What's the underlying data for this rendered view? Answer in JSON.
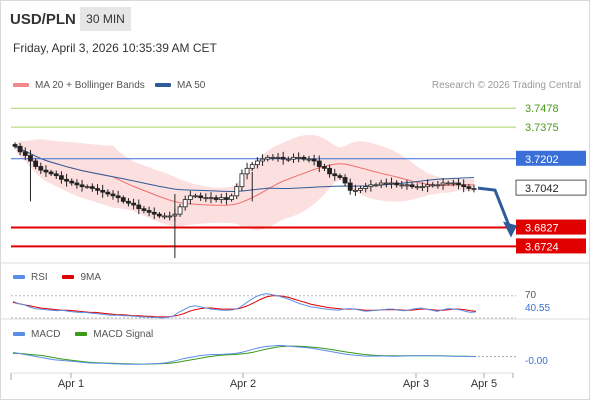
{
  "header": {
    "symbol": "USD/PLN",
    "timeframe": "30 MIN",
    "datetime": "Friday, April 3, 2026 10:35:39 AM CET"
  },
  "legend": {
    "bollinger_label": "MA 20 + Bollinger Bands",
    "ma50_label": "MA 50",
    "credit": "Research © 2026 Trading Central"
  },
  "colors": {
    "bollinger": "#f5a3a3",
    "ma50": "#2e5b9a",
    "resistance": "#a8d36a",
    "support": "#e00000",
    "pivot": "#3a6fd8",
    "arrow": "#2e5b9a",
    "rsi": "#5b8ee6",
    "rsi_ma": "#e00000",
    "macd": "#5b8ee6",
    "macd_signal": "#3a9a1a",
    "bull": "#ffffff",
    "bear": "#222222"
  },
  "chart_data": [
    {
      "type": "candlestick",
      "title": "USD/PLN",
      "timeframe": "30 MIN",
      "ylim": [
        3.665,
        3.755
      ],
      "x_ticks": [
        "Apr 1",
        "Apr 2",
        "Apr 3",
        "Apr 5"
      ],
      "series": [
        {
          "name": "MA 20 + Bollinger Bands"
        },
        {
          "name": "MA 50"
        }
      ],
      "levels": [
        {
          "label": "3.7478",
          "value": 3.7478,
          "kind": "resistance"
        },
        {
          "label": "3.7375",
          "value": 3.7375,
          "kind": "resistance"
        },
        {
          "label": "3.7202",
          "value": 3.7202,
          "kind": "pivot"
        },
        {
          "label": "3.7042",
          "value": 3.7042,
          "kind": "last"
        },
        {
          "label": "3.6827",
          "value": 3.6827,
          "kind": "support"
        },
        {
          "label": "3.6724",
          "value": 3.6724,
          "kind": "support"
        }
      ],
      "approx_close": [
        3.727,
        3.724,
        3.722,
        3.719,
        3.716,
        3.714,
        3.713,
        3.712,
        3.711,
        3.709,
        3.708,
        3.707,
        3.706,
        3.705,
        3.705,
        3.704,
        3.703,
        3.702,
        3.701,
        3.7,
        3.699,
        3.697,
        3.696,
        3.695,
        3.693,
        3.692,
        3.691,
        3.69,
        3.689,
        3.689,
        3.689,
        3.69,
        3.694,
        3.698,
        3.7,
        3.7,
        3.699,
        3.699,
        3.699,
        3.698,
        3.699,
        3.698,
        3.7,
        3.705,
        3.712,
        3.715,
        3.717,
        3.719,
        3.72,
        3.721,
        3.721,
        3.721,
        3.72,
        3.72,
        3.721,
        3.721,
        3.72,
        3.72,
        3.719,
        3.716,
        3.715,
        3.712,
        3.711,
        3.71,
        3.707,
        3.703,
        3.703,
        3.704,
        3.705,
        3.706,
        3.706,
        3.707,
        3.707,
        3.707,
        3.706,
        3.706,
        3.706,
        3.705,
        3.705,
        3.705,
        3.706,
        3.706,
        3.706,
        3.707,
        3.707,
        3.707,
        3.706,
        3.705,
        3.704,
        3.704
      ],
      "projection": {
        "from": 3.7042,
        "to": 3.6827
      }
    },
    {
      "type": "line",
      "title": "RSI",
      "series": [
        {
          "name": "RSI"
        },
        {
          "name": "9MA"
        }
      ],
      "levels": [
        {
          "label": "70",
          "value": 70
        },
        {
          "label": "40.55",
          "value": 40.55,
          "kind": "current"
        }
      ],
      "approx_rsi": [
        60,
        56,
        54,
        50,
        47,
        46,
        45,
        44,
        43,
        44,
        42,
        41,
        40,
        40,
        39,
        38,
        37,
        36,
        35,
        35,
        34,
        34,
        33,
        32,
        32,
        31,
        31,
        30,
        31,
        33,
        40,
        45,
        50,
        52,
        50,
        48,
        46,
        45,
        44,
        44,
        45,
        48,
        55,
        62,
        68,
        72,
        74,
        72,
        70,
        67,
        64,
        60,
        56,
        53,
        50,
        49,
        47,
        46,
        45,
        44,
        46,
        47,
        46,
        44,
        42,
        43,
        44,
        45,
        46,
        46,
        44,
        43,
        45,
        47,
        48,
        46,
        44,
        42,
        45,
        47,
        46,
        45,
        42,
        40,
        41
      ],
      "approx_rsi_ma": [
        58,
        56,
        54,
        52,
        50,
        48,
        47,
        46,
        45,
        44,
        44,
        43,
        42,
        41,
        40,
        40,
        39,
        38,
        37,
        36,
        36,
        35,
        34,
        34,
        33,
        33,
        32,
        32,
        32,
        33,
        35,
        38,
        42,
        45,
        47,
        48,
        48,
        47,
        46,
        46,
        46,
        47,
        50,
        54,
        59,
        64,
        68,
        70,
        70,
        69,
        67,
        64,
        61,
        58,
        55,
        53,
        51,
        49,
        48,
        47,
        46,
        46,
        46,
        45,
        44,
        44,
        44,
        45,
        45,
        45,
        45,
        44,
        44,
        45,
        46,
        46,
        45,
        44,
        44,
        45,
        46,
        46,
        45,
        43,
        42
      ]
    },
    {
      "type": "line",
      "title": "MACD",
      "series": [
        {
          "name": "MACD"
        },
        {
          "name": "MACD Signal"
        }
      ],
      "levels": [
        {
          "label": "-0.00",
          "value": 0,
          "kind": "current"
        }
      ],
      "approx_macd": [
        0.4,
        0.3,
        0.2,
        0.1,
        0.0,
        -0.1,
        -0.2,
        -0.3,
        -0.35,
        -0.4,
        -0.45,
        -0.5,
        -0.55,
        -0.6,
        -0.62,
        -0.64,
        -0.66,
        -0.68,
        -0.7,
        -0.72,
        -0.72,
        -0.72,
        -0.71,
        -0.7,
        -0.68,
        -0.65,
        -0.6,
        -0.5,
        -0.35,
        -0.2,
        -0.1,
        0.0,
        0.1,
        0.15,
        0.2,
        0.2,
        0.22,
        0.25,
        0.3,
        0.4,
        0.55,
        0.7,
        0.85,
        0.95,
        1.0,
        1.05,
        1.05,
        1.0,
        0.95,
        0.9,
        0.85,
        0.8,
        0.7,
        0.6,
        0.5,
        0.4,
        0.3,
        0.2,
        0.15,
        0.1,
        0.05,
        0.05,
        0.05,
        0.06,
        0.05,
        0.04,
        0.05,
        0.06,
        0.07,
        0.08,
        0.08,
        0.08,
        0.07,
        0.06,
        0.05,
        0.04,
        0.03,
        0.02,
        0.01,
        0.0
      ],
      "approx_signal": [
        0.3,
        0.3,
        0.25,
        0.2,
        0.15,
        0.1,
        0.0,
        -0.1,
        -0.2,
        -0.28,
        -0.35,
        -0.42,
        -0.48,
        -0.53,
        -0.57,
        -0.6,
        -0.62,
        -0.64,
        -0.66,
        -0.68,
        -0.7,
        -0.71,
        -0.71,
        -0.71,
        -0.7,
        -0.68,
        -0.66,
        -0.62,
        -0.55,
        -0.45,
        -0.35,
        -0.25,
        -0.15,
        -0.05,
        0.03,
        0.1,
        0.15,
        0.18,
        0.2,
        0.25,
        0.32,
        0.42,
        0.55,
        0.68,
        0.8,
        0.9,
        0.96,
        1.0,
        1.0,
        0.98,
        0.95,
        0.9,
        0.85,
        0.78,
        0.7,
        0.62,
        0.52,
        0.43,
        0.35,
        0.27,
        0.2,
        0.15,
        0.11,
        0.09,
        0.08,
        0.07,
        0.07,
        0.07,
        0.07,
        0.07,
        0.07,
        0.07,
        0.07,
        0.07,
        0.06,
        0.05,
        0.04,
        0.03,
        0.02,
        0.01
      ]
    }
  ],
  "rsi_legend": {
    "rsi_label": "RSI",
    "ma_label": "9MA"
  },
  "macd_legend": {
    "macd_label": "MACD",
    "signal_label": "MACD Signal"
  }
}
